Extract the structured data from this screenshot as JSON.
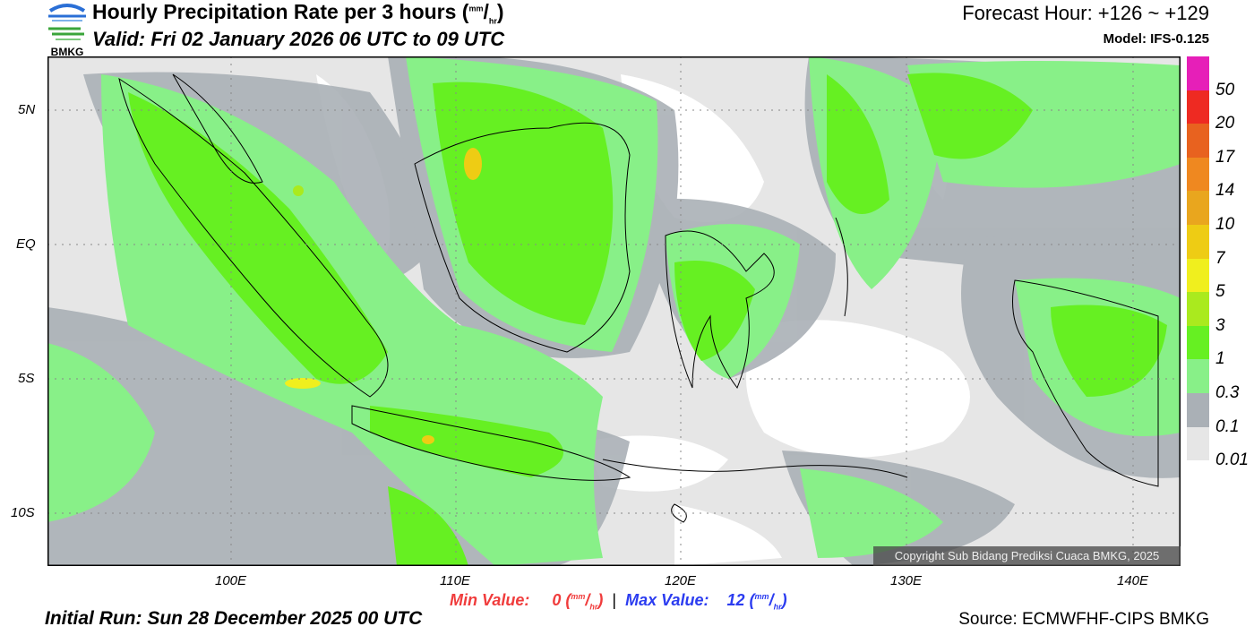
{
  "header": {
    "logo_text": "BMKG",
    "title": "Hourly Precipitation Rate per 3 hours (",
    "unit_num": "mm",
    "unit_den": "hr",
    "title_close": ")",
    "valid": "Valid: Fri 02 January 2026 06 UTC to 09 UTC",
    "forecast_hour": "Forecast Hour: +126 ~ +129",
    "model": "Model: IFS-0.125"
  },
  "map": {
    "lon_ticks": [
      "100E",
      "110E",
      "120E",
      "130E",
      "140E"
    ],
    "lat_ticks": [
      "5N",
      "EQ",
      "5S",
      "10S"
    ],
    "copyright": "Copyright Sub Bidang Prediksi Cuaca BMKG, 2025"
  },
  "colorbar": {
    "labels": [
      "50",
      "20",
      "17",
      "14",
      "10",
      "7",
      "5",
      "3",
      "1",
      "0.3",
      "0.1",
      "0.01"
    ],
    "colors": [
      "#e61fb8",
      "#ee2a22",
      "#e8621f",
      "#ef8820",
      "#e9a61e",
      "#eecc14",
      "#f0ef1e",
      "#aaea1e",
      "#66f022",
      "#88f088",
      "#aab0b6",
      "#e6e6e6"
    ]
  },
  "footer": {
    "min_label": "Min Value:",
    "min_value": "0",
    "max_label": "Max Value:",
    "max_value": "12",
    "unit_num": "mm",
    "unit_den": "hr",
    "initial_run": "Initial Run: Sun 28 December 2025 00 UTC",
    "source": "Source: ECMWFHF-CIPS BMKG"
  }
}
